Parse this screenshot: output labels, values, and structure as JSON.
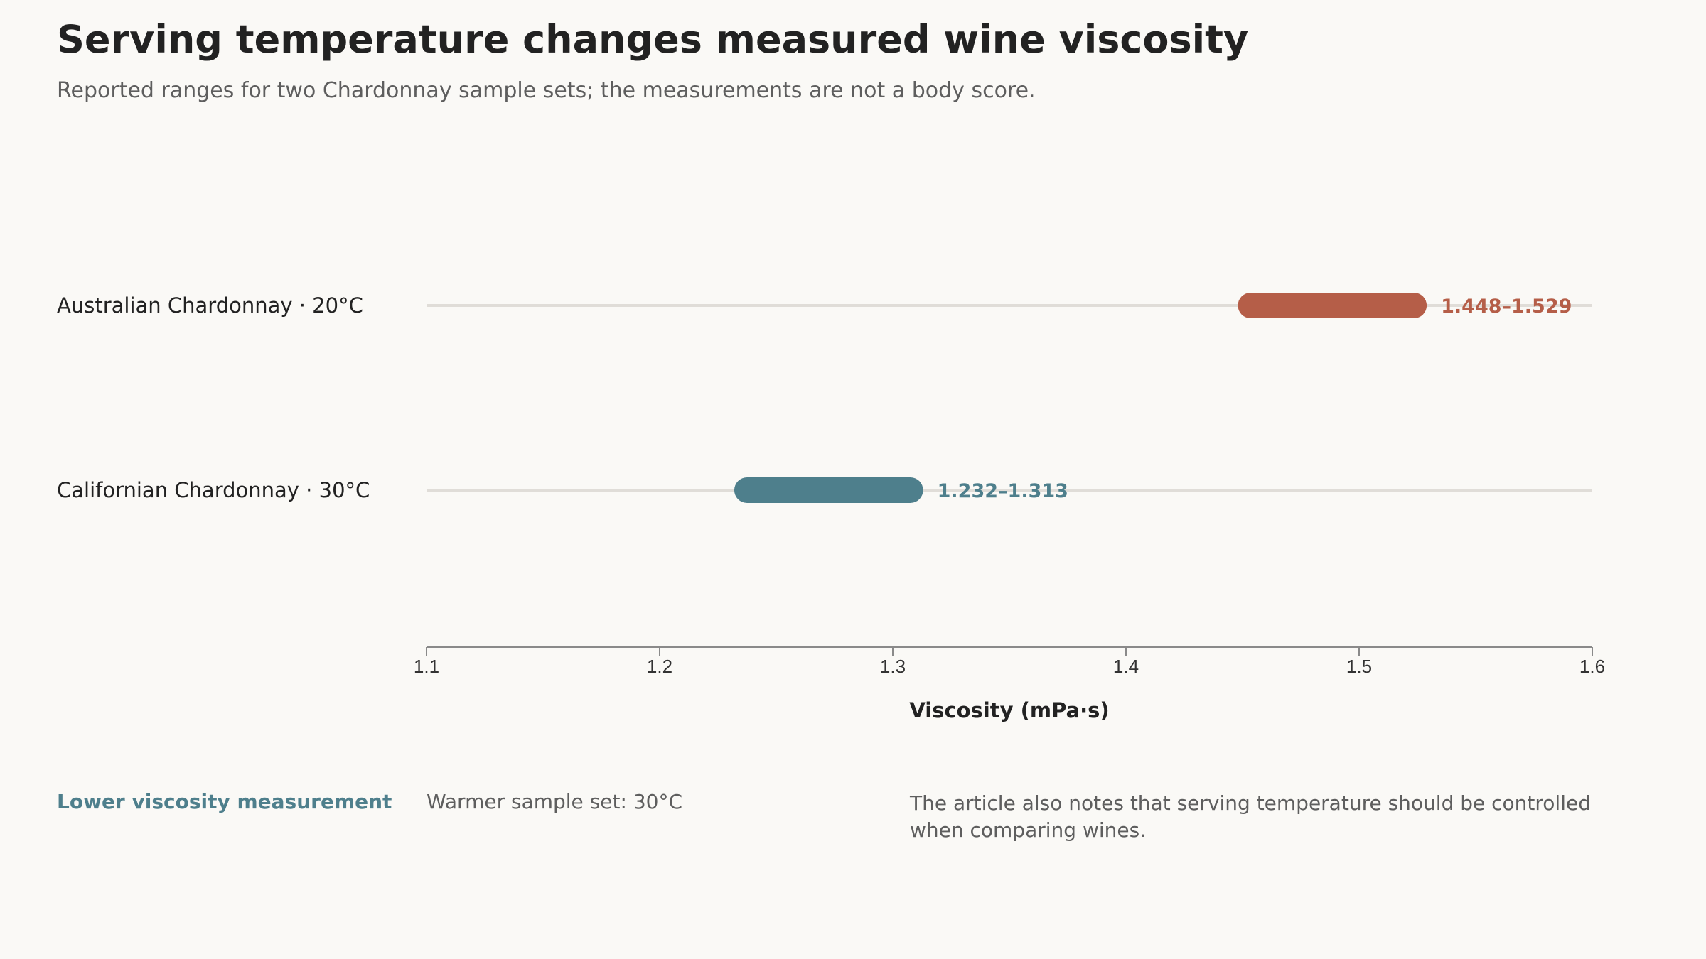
{
  "header": {
    "title": "Serving temperature changes measured wine viscosity",
    "subtitle": "Reported ranges for two Chardonnay sample sets; the measurements are not a body score."
  },
  "chart_data": {
    "type": "range-bar",
    "xlabel": "Viscosity (mPa·s)",
    "xlim": [
      1.1,
      1.6
    ],
    "ticks": [
      "1.1",
      "1.2",
      "1.3",
      "1.4",
      "1.5",
      "1.6"
    ],
    "grid": false,
    "rows": [
      {
        "label": "Australian Chardonnay · 20°C",
        "low": 1.448,
        "high": 1.529,
        "value_label": "1.448–1.529",
        "color": "#b55e48"
      },
      {
        "label": "Californian Chardonnay · 30°C",
        "low": 1.232,
        "high": 1.313,
        "value_label": "1.232–1.313",
        "color": "#4e7f8c"
      }
    ]
  },
  "footer": {
    "highlight": "Lower viscosity measurement",
    "detail": "Warmer sample set: 30°C",
    "note": "The article also notes that serving temperature should be controlled when comparing wines."
  }
}
